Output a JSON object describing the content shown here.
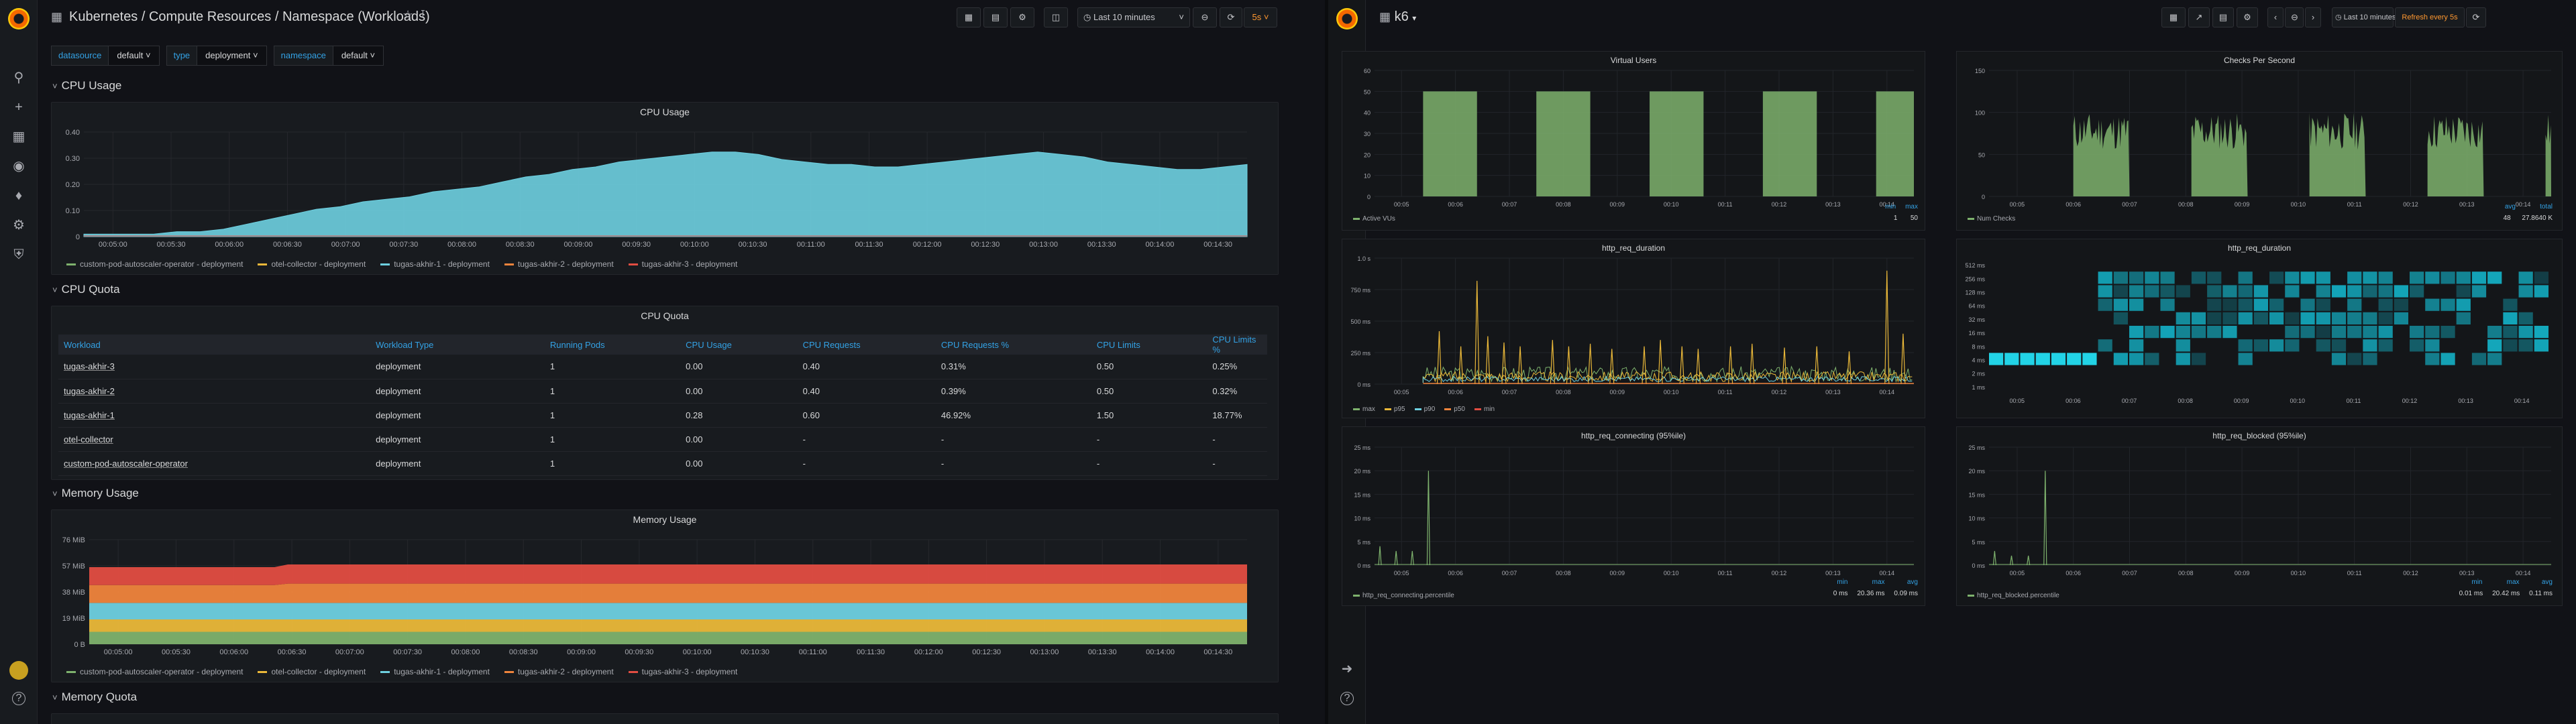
{
  "left": {
    "breadcrumb": "Kubernetes / Compute Resources / Namespace (Workloads)",
    "time_range": "Last 10 minutes",
    "refresh": "5s",
    "variables": [
      {
        "label": "datasource",
        "value": "default"
      },
      {
        "label": "type",
        "value": "deployment"
      },
      {
        "label": "namespace",
        "value": "default"
      }
    ],
    "rows": {
      "cpu_usage": "CPU Usage",
      "cpu_quota": "CPU Quota",
      "memory_usage": "Memory Usage",
      "memory_quota": "Memory Quota"
    },
    "legend": [
      "custom-pod-autoscaler-operator - deployment",
      "otel-collector - deployment",
      "tugas-akhir-1 - deployment",
      "tugas-akhir-2 - deployment",
      "tugas-akhir-3 - deployment"
    ],
    "legend_colors": [
      "#7eb26d",
      "#eab839",
      "#6ed0e0",
      "#ef843c",
      "#e24d42"
    ],
    "time_ticks": [
      "00:05:00",
      "00:05:30",
      "00:06:00",
      "00:06:30",
      "00:07:00",
      "00:07:30",
      "00:08:00",
      "00:08:30",
      "00:09:00",
      "00:09:30",
      "00:10:00",
      "00:10:30",
      "00:11:00",
      "00:11:30",
      "00:12:00",
      "00:12:30",
      "00:13:00",
      "00:13:30",
      "00:14:00",
      "00:14:30"
    ],
    "cpu_chart": {
      "type": "area",
      "title": "CPU Usage",
      "y_ticks": [
        "0",
        "0.10",
        "0.20",
        "0.30",
        "0.40"
      ],
      "ylim": [
        0,
        0.42
      ],
      "series_name": "tugas-akhir-1 - deployment",
      "values": [
        0.01,
        0.01,
        0.01,
        0.01,
        0.02,
        0.02,
        0.03,
        0.05,
        0.07,
        0.09,
        0.11,
        0.12,
        0.14,
        0.15,
        0.16,
        0.18,
        0.19,
        0.2,
        0.22,
        0.24,
        0.25,
        0.27,
        0.28,
        0.3,
        0.31,
        0.32,
        0.33,
        0.34,
        0.34,
        0.33,
        0.31,
        0.3,
        0.29,
        0.29,
        0.28,
        0.28,
        0.29,
        0.3,
        0.31,
        0.32,
        0.33,
        0.34,
        0.33,
        0.32,
        0.3,
        0.29,
        0.28,
        0.27,
        0.27,
        0.28,
        0.29
      ],
      "color": "#6ed0e0"
    },
    "cpu_quota": {
      "title": "CPU Quota",
      "columns": [
        "Workload",
        "Workload Type",
        "Running Pods",
        "CPU Usage",
        "CPU Requests",
        "CPU Requests %",
        "CPU Limits",
        "CPU Limits %"
      ],
      "rows": [
        [
          "tugas-akhir-3",
          "deployment",
          "1",
          "0.00",
          "0.40",
          "0.31%",
          "0.50",
          "0.25%"
        ],
        [
          "tugas-akhir-2",
          "deployment",
          "1",
          "0.00",
          "0.40",
          "0.39%",
          "0.50",
          "0.32%"
        ],
        [
          "tugas-akhir-1",
          "deployment",
          "1",
          "0.28",
          "0.60",
          "46.92%",
          "1.50",
          "18.77%"
        ],
        [
          "otel-collector",
          "deployment",
          "1",
          "0.00",
          "-",
          "-",
          "-",
          "-"
        ],
        [
          "custom-pod-autoscaler-operator",
          "deployment",
          "1",
          "0.00",
          "-",
          "-",
          "-",
          "-"
        ]
      ]
    },
    "mem_chart": {
      "type": "area",
      "title": "Memory Usage",
      "y_ticks": [
        "0 B",
        "19 MiB",
        "38 MiB",
        "57 MiB",
        "76 MiB"
      ],
      "ylim": [
        0,
        76
      ],
      "stack_before": [
        9,
        9,
        12,
        13,
        13
      ],
      "stack_after": [
        9,
        9,
        12,
        14,
        14
      ],
      "step_at_fraction": 0.16,
      "colors": [
        "#7eb26d",
        "#eab839",
        "#6ed0e0",
        "#ef843c",
        "#e24d42"
      ]
    }
  },
  "right": {
    "dashboard": "k6",
    "time_range": "Last 10 minutes",
    "refresh": "Refresh every 5s",
    "minute_ticks": [
      "00:05",
      "00:06",
      "00:07",
      "00:08",
      "00:09",
      "00:10",
      "00:11",
      "00:12",
      "00:13",
      "00:14"
    ],
    "vus": {
      "title": "Virtual Users",
      "y_ticks": [
        "0",
        "10",
        "20",
        "30",
        "40",
        "50",
        "60"
      ],
      "ylim": [
        0,
        60
      ],
      "blocks": [
        [
          0.09,
          0.19
        ],
        [
          0.3,
          0.4
        ],
        [
          0.51,
          0.61
        ],
        [
          0.72,
          0.82
        ],
        [
          0.93,
          1.0
        ]
      ],
      "level": 50,
      "legend": "Active VUs",
      "stat_heads": [
        "min",
        "max"
      ],
      "stat_vals": [
        "1",
        "50"
      ],
      "color": "#7eb26d"
    },
    "checks": {
      "title": "Checks Per Second",
      "y_ticks": [
        "0",
        "50",
        "100",
        "150"
      ],
      "ylim": [
        0,
        150
      ],
      "blocks": [
        [
          0.15,
          0.25
        ],
        [
          0.36,
          0.46
        ],
        [
          0.57,
          0.67
        ],
        [
          0.78,
          0.88
        ],
        [
          0.99,
          1.0
        ]
      ],
      "level": 100,
      "legend": "Num Checks",
      "stat_heads": [
        "avg",
        "total"
      ],
      "stat_vals": [
        "48",
        "27.8640 K"
      ],
      "color": "#7eb26d"
    },
    "duration_line": {
      "title": "http_req_duration",
      "y_ticks": [
        "0 ms",
        "250 ms",
        "500 ms",
        "750 ms",
        "1.0 s"
      ],
      "ylim": [
        0,
        1000
      ],
      "legend": [
        "max",
        "p95",
        "p90",
        "p50",
        "min"
      ],
      "legend_colors": [
        "#7eb26d",
        "#eab839",
        "#6ed0e0",
        "#ef843c",
        "#e24d42"
      ],
      "spikes": [
        [
          0.12,
          420
        ],
        [
          0.16,
          300
        ],
        [
          0.19,
          820
        ],
        [
          0.21,
          380
        ],
        [
          0.24,
          330
        ],
        [
          0.27,
          300
        ],
        [
          0.33,
          350
        ],
        [
          0.36,
          300
        ],
        [
          0.4,
          320
        ],
        [
          0.44,
          280
        ],
        [
          0.5,
          300
        ],
        [
          0.53,
          350
        ],
        [
          0.57,
          300
        ],
        [
          0.6,
          280
        ],
        [
          0.66,
          300
        ],
        [
          0.7,
          320
        ],
        [
          0.76,
          290
        ],
        [
          0.82,
          300
        ],
        [
          0.88,
          260
        ],
        [
          0.95,
          900
        ],
        [
          0.98,
          400
        ]
      ]
    },
    "duration_heat": {
      "title": "http_req_duration",
      "y_ticks": [
        "512 ms",
        "256 ms",
        "128 ms",
        "64 ms",
        "32 ms",
        "16 ms",
        "8 ms",
        "4 ms",
        "2 ms",
        "1 ms"
      ]
    },
    "connecting": {
      "title": "http_req_connecting (95%ile)",
      "y_ticks": [
        "0 ms",
        "5 ms",
        "10 ms",
        "15 ms",
        "20 ms",
        "25 ms"
      ],
      "ylim": [
        0,
        25
      ],
      "spikes": [
        [
          0.01,
          4
        ],
        [
          0.04,
          3
        ],
        [
          0.07,
          3
        ],
        [
          0.1,
          20
        ]
      ],
      "legend": "http_req_connecting.percentile",
      "stat_heads": [
        "min",
        "max",
        "avg"
      ],
      "stat_vals": [
        "0 ms",
        "20.36 ms",
        "0.09 ms"
      ]
    },
    "blocked": {
      "title": "http_req_blocked (95%ile)",
      "y_ticks": [
        "0 ms",
        "5 ms",
        "10 ms",
        "15 ms",
        "20 ms",
        "25 ms"
      ],
      "ylim": [
        0,
        25
      ],
      "spikes": [
        [
          0.01,
          3
        ],
        [
          0.04,
          2
        ],
        [
          0.07,
          2
        ],
        [
          0.1,
          20
        ]
      ],
      "legend": "http_req_blocked.percentile",
      "stat_heads": [
        "min",
        "max",
        "avg"
      ],
      "stat_vals": [
        "0.01 ms",
        "20.42 ms",
        "0.11 ms"
      ]
    }
  }
}
